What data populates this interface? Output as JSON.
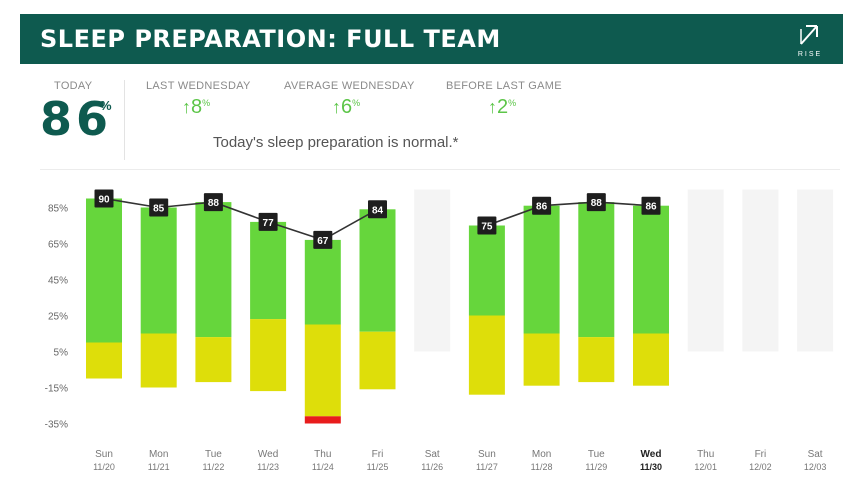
{
  "header": {
    "title": "SLEEP PREPARATION: FULL TEAM",
    "logo_text": "RISE"
  },
  "stats": {
    "today": {
      "label": "TODAY",
      "value": "86",
      "unit": "%"
    },
    "last_wednesday": {
      "label": "LAST WEDNESDAY",
      "arrow": "↑",
      "value": "8",
      "unit": "%"
    },
    "average_wednesday": {
      "label": "AVERAGE WEDNESDAY",
      "arrow": "↑",
      "value": "6",
      "unit": "%"
    },
    "before_last_game": {
      "label": "BEFORE LAST GAME",
      "arrow": "↑",
      "value": "2",
      "unit": "%"
    }
  },
  "message": "Today's sleep preparation is normal.*",
  "colors": {
    "brand": "#0e5a4f",
    "green": "#66d63c",
    "yellow": "#dede0a",
    "red": "#e81c1c",
    "empty": "#f4f4f4",
    "delta": "#5cc548",
    "line": "#333333"
  },
  "chart_data": {
    "type": "bar",
    "title": "",
    "xlabel": "",
    "ylabel": "",
    "ylim": [
      -35,
      95
    ],
    "yticks": [
      "85%",
      "65%",
      "45%",
      "25%",
      "5%",
      "-15%",
      "-35%"
    ],
    "ytick_values": [
      85,
      65,
      45,
      25,
      5,
      -15,
      -35
    ],
    "categories": [
      {
        "day": "Sun",
        "date": "11/20"
      },
      {
        "day": "Mon",
        "date": "11/21"
      },
      {
        "day": "Tue",
        "date": "11/22"
      },
      {
        "day": "Wed",
        "date": "11/23"
      },
      {
        "day": "Thu",
        "date": "11/24"
      },
      {
        "day": "Fri",
        "date": "11/25"
      },
      {
        "day": "Sat",
        "date": "11/26"
      },
      {
        "day": "Sun",
        "date": "11/27"
      },
      {
        "day": "Mon",
        "date": "11/28"
      },
      {
        "day": "Tue",
        "date": "11/29"
      },
      {
        "day": "Wed",
        "date": "11/30"
      },
      {
        "day": "Thu",
        "date": "12/01"
      },
      {
        "day": "Fri",
        "date": "12/02"
      },
      {
        "day": "Sat",
        "date": "12/03"
      }
    ],
    "highlight_index": 10,
    "series": [
      {
        "name": "",
        "color": "green",
        "values": [
          [
            10,
            90
          ],
          [
            15,
            85
          ],
          [
            13,
            88
          ],
          [
            23,
            77
          ],
          [
            20,
            67
          ],
          [
            16,
            84
          ],
          null,
          [
            25,
            75
          ],
          [
            15,
            86
          ],
          [
            13,
            88
          ],
          [
            15,
            86
          ],
          null,
          null,
          null
        ]
      },
      {
        "name": "",
        "color": "yellow",
        "values": [
          [
            -10,
            10
          ],
          [
            -15,
            15
          ],
          [
            -12,
            13
          ],
          [
            -17,
            23
          ],
          [
            -31,
            20
          ],
          [
            -16,
            16
          ],
          null,
          [
            -19,
            25
          ],
          [
            -14,
            15
          ],
          [
            -12,
            13
          ],
          [
            -14,
            15
          ],
          null,
          null,
          null
        ]
      },
      {
        "name": "",
        "color": "red",
        "values": [
          null,
          null,
          null,
          null,
          [
            -35,
            -31
          ],
          null,
          null,
          null,
          null,
          null,
          null,
          null,
          null,
          null
        ]
      }
    ],
    "score_labels": [
      90,
      85,
      88,
      77,
      67,
      84,
      null,
      75,
      86,
      88,
      86,
      null,
      null,
      null
    ],
    "empty_days": [
      6,
      11,
      12,
      13
    ]
  }
}
